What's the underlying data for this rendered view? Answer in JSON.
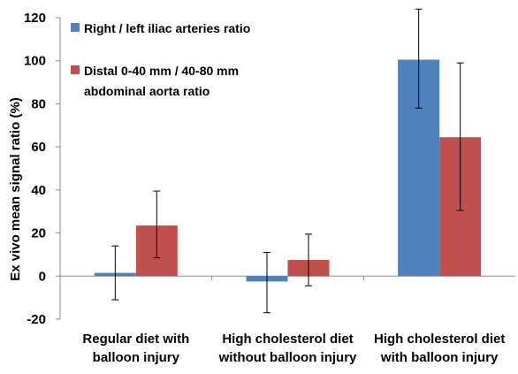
{
  "chart_data": {
    "type": "bar",
    "title": "",
    "xlabel": "",
    "ylabel": "Ex vivo mean signal ratio (%)",
    "ylim": [
      -20,
      120
    ],
    "yticks": [
      -20,
      0,
      20,
      40,
      60,
      80,
      100,
      120
    ],
    "grid": false,
    "legend_position": "top-left",
    "categories": [
      [
        "Regular diet with",
        "balloon injury"
      ],
      [
        "High cholesterol diet",
        "without balloon injury"
      ],
      [
        "High cholesterol diet",
        "with balloon injury"
      ]
    ],
    "series": [
      {
        "name": "Right / left iliac arteries ratio",
        "name_lines": [
          "Right / left iliac arteries ratio"
        ],
        "color": "#4f81bd",
        "values": [
          1.5,
          -2.5,
          100.5
        ],
        "error_low": [
          -11,
          -17,
          78
        ],
        "error_high": [
          14,
          11,
          124
        ]
      },
      {
        "name": "Distal 0-40 mm / 40-80 mm abdominal aorta ratio",
        "name_lines": [
          "Distal 0-40 mm / 40-80 mm",
          "abdominal aorta ratio"
        ],
        "color": "#c0504d",
        "values": [
          23.5,
          7.5,
          64.5
        ],
        "error_low": [
          8.5,
          -4.5,
          30.5
        ],
        "error_high": [
          39.5,
          19.5,
          99
        ]
      }
    ]
  }
}
